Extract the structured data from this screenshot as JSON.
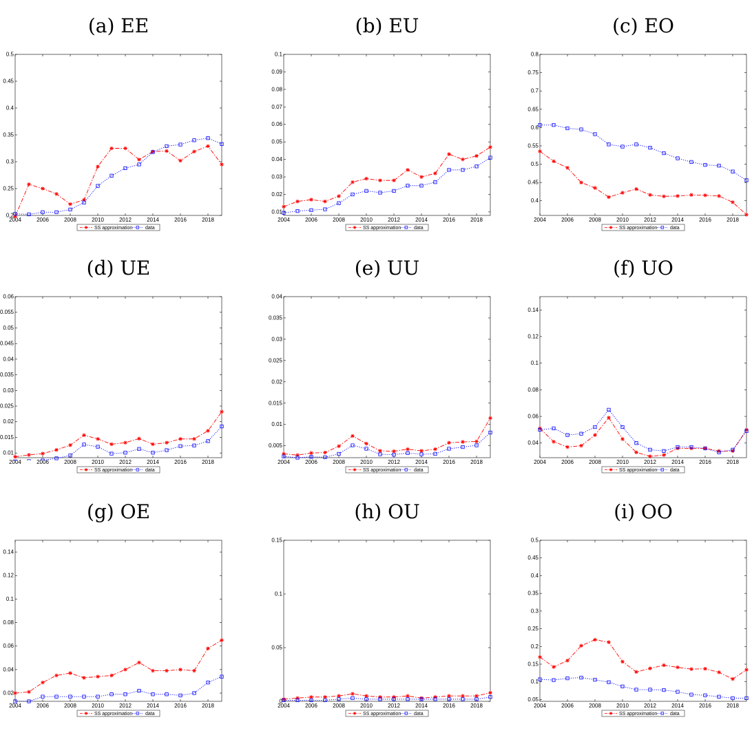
{
  "chart_data": [
    {
      "type": "line",
      "title": "(a) EE",
      "x": [
        2004,
        2005,
        2006,
        2007,
        2008,
        2009,
        2010,
        2011,
        2012,
        2013,
        2014,
        2015,
        2016,
        2017,
        2018,
        2019
      ],
      "xlim": [
        2004,
        2019
      ],
      "ylim": [
        0.2,
        0.5
      ],
      "xticks": [
        "2004",
        "2006",
        "2008",
        "2010",
        "2012",
        "2014",
        "2016",
        "2018"
      ],
      "yticks": [
        "0.2",
        "0.25",
        "0.3",
        "0.35",
        "0.4",
        "0.45",
        "0.5"
      ],
      "series": [
        {
          "name": "SS approximation",
          "color": "#ff0000",
          "marker": "star",
          "dash": "dashdot",
          "values": [
            0.198,
            0.258,
            0.25,
            0.24,
            0.221,
            0.229,
            0.291,
            0.325,
            0.325,
            0.304,
            0.319,
            0.32,
            0.302,
            0.319,
            0.329,
            0.295
          ]
        },
        {
          "name": "data",
          "color": "#0000ff",
          "marker": "square",
          "dash": "dotted",
          "values": [
            0.203,
            0.202,
            0.206,
            0.206,
            0.211,
            0.224,
            0.255,
            0.274,
            0.288,
            0.295,
            0.318,
            0.329,
            0.332,
            0.34,
            0.344,
            0.333
          ]
        }
      ],
      "legend": [
        "SS approximation",
        "data"
      ],
      "legend_position": "bottom",
      "grid": false
    },
    {
      "type": "line",
      "title": "(b) EU",
      "x": [
        2004,
        2005,
        2006,
        2007,
        2008,
        2009,
        2010,
        2011,
        2012,
        2013,
        2014,
        2015,
        2016,
        2017,
        2018,
        2019
      ],
      "xlim": [
        2004,
        2019
      ],
      "ylim": [
        0.008,
        0.1
      ],
      "xticks": [
        "2004",
        "2006",
        "2008",
        "2010",
        "2012",
        "2014",
        "2016",
        "2018"
      ],
      "yticks": [
        "0.01",
        "0.02",
        "0.03",
        "0.04",
        "0.05",
        "0.06",
        "0.07",
        "0.08",
        "0.09",
        "0.1"
      ],
      "series": [
        {
          "name": "SS approximation",
          "color": "#ff0000",
          "marker": "star",
          "dash": "dashdot",
          "values": [
            0.013,
            0.016,
            0.017,
            0.016,
            0.019,
            0.027,
            0.029,
            0.028,
            0.028,
            0.034,
            0.03,
            0.032,
            0.043,
            0.04,
            0.042,
            0.047
          ]
        },
        {
          "name": "data",
          "color": "#0000ff",
          "marker": "square",
          "dash": "dotted",
          "values": [
            0.0095,
            0.0105,
            0.011,
            0.0115,
            0.015,
            0.02,
            0.022,
            0.021,
            0.022,
            0.025,
            0.025,
            0.027,
            0.034,
            0.034,
            0.036,
            0.041
          ]
        }
      ],
      "legend": [
        "SS approximation",
        "data"
      ],
      "legend_position": "bottom",
      "grid": false
    },
    {
      "type": "line",
      "title": "(c) EO",
      "x": [
        2004,
        2005,
        2006,
        2007,
        2008,
        2009,
        2010,
        2011,
        2012,
        2013,
        2014,
        2015,
        2016,
        2017,
        2018,
        2019
      ],
      "xlim": [
        2004,
        2019
      ],
      "ylim": [
        0.36,
        0.8
      ],
      "xticks": [
        "2004",
        "2006",
        "2008",
        "2010",
        "2012",
        "2014",
        "2016",
        "2018"
      ],
      "yticks": [
        "0.4",
        "0.45",
        "0.5",
        "0.55",
        "0.6",
        "0.65",
        "0.7",
        "0.75",
        "0.8"
      ],
      "series": [
        {
          "name": "SS approximation",
          "color": "#ff0000",
          "marker": "star",
          "dash": "dashdot",
          "values": [
            0.535,
            0.508,
            0.49,
            0.45,
            0.435,
            0.41,
            0.422,
            0.432,
            0.416,
            0.412,
            0.413,
            0.416,
            0.415,
            0.413,
            0.396,
            0.362
          ]
        },
        {
          "name": "data",
          "color": "#0000ff",
          "marker": "square",
          "dash": "dotted",
          "values": [
            0.607,
            0.607,
            0.598,
            0.595,
            0.582,
            0.554,
            0.548,
            0.554,
            0.545,
            0.53,
            0.516,
            0.506,
            0.498,
            0.496,
            0.48,
            0.456
          ]
        }
      ],
      "legend": [
        "SS approximation",
        "data"
      ],
      "legend_position": "bottom",
      "grid": false
    },
    {
      "type": "line",
      "title": "(d) UE",
      "x": [
        2004,
        2005,
        2006,
        2007,
        2008,
        2009,
        2010,
        2011,
        2012,
        2013,
        2014,
        2015,
        2016,
        2017,
        2018,
        2019
      ],
      "xlim": [
        2004,
        2019
      ],
      "ylim": [
        0.0085,
        0.06
      ],
      "xticks": [
        "2004",
        "2006",
        "2008",
        "2010",
        "2012",
        "2014",
        "2016",
        "2018"
      ],
      "yticks": [
        "0.01",
        "0.015",
        "0.02",
        "0.025",
        "0.03",
        "0.035",
        "0.04",
        "0.045",
        "0.05",
        "0.055",
        "0.06"
      ],
      "series": [
        {
          "name": "SS approximation",
          "color": "#ff0000",
          "marker": "star",
          "dash": "dashdot",
          "values": [
            0.0088,
            0.0094,
            0.0098,
            0.011,
            0.0125,
            0.0157,
            0.0145,
            0.0128,
            0.0133,
            0.0146,
            0.0128,
            0.0133,
            0.0145,
            0.0145,
            0.0171,
            0.0232
          ]
        },
        {
          "name": "data",
          "color": "#0000ff",
          "marker": "square",
          "dash": "dotted",
          "values": [
            0.0073,
            0.0074,
            0.0076,
            0.0083,
            0.0092,
            0.0127,
            0.012,
            0.0098,
            0.0101,
            0.0113,
            0.0101,
            0.0109,
            0.0122,
            0.0124,
            0.0138,
            0.0185
          ]
        }
      ],
      "legend": [
        "SS approximation",
        "data"
      ],
      "legend_position": "bottom",
      "grid": false
    },
    {
      "type": "line",
      "title": "(e) UU",
      "x": [
        2004,
        2005,
        2006,
        2007,
        2008,
        2009,
        2010,
        2011,
        2012,
        2013,
        2014,
        2015,
        2016,
        2017,
        2018,
        2019
      ],
      "xlim": [
        2004,
        2019
      ],
      "ylim": [
        0.0022,
        0.04
      ],
      "xticks": [
        "2004",
        "2006",
        "2008",
        "2010",
        "2012",
        "2014",
        "2016",
        "2018"
      ],
      "yticks": [
        "0.005",
        "0.01",
        "0.015",
        "0.02",
        "0.025",
        "0.03",
        "0.035",
        "0.04"
      ],
      "series": [
        {
          "name": "SS approximation",
          "color": "#ff0000",
          "marker": "star",
          "dash": "dashdot",
          "values": [
            0.0031,
            0.0028,
            0.0033,
            0.0034,
            0.0049,
            0.0073,
            0.0055,
            0.0038,
            0.0037,
            0.0042,
            0.0038,
            0.0042,
            0.0057,
            0.0059,
            0.006,
            0.0115
          ]
        },
        {
          "name": "data",
          "color": "#0000ff",
          "marker": "square",
          "dash": "dotted",
          "values": [
            0.0025,
            0.0022,
            0.0024,
            0.0023,
            0.0031,
            0.0051,
            0.0043,
            0.003,
            0.0029,
            0.0033,
            0.003,
            0.0031,
            0.0043,
            0.0047,
            0.0051,
            0.0081
          ]
        }
      ],
      "legend": [
        "SS approximation",
        "data"
      ],
      "legend_position": "bottom",
      "grid": false
    },
    {
      "type": "line",
      "title": "(f) UO",
      "x": [
        2004,
        2005,
        2006,
        2007,
        2008,
        2009,
        2010,
        2011,
        2012,
        2013,
        2014,
        2015,
        2016,
        2017,
        2018,
        2019
      ],
      "xlim": [
        2004,
        2019
      ],
      "ylim": [
        0.029,
        0.15
      ],
      "xticks": [
        "2004",
        "2006",
        "2008",
        "2010",
        "2012",
        "2014",
        "2016",
        "2018"
      ],
      "yticks": [
        "0.04",
        "0.06",
        "0.08",
        "0.1",
        "0.12",
        "0.14"
      ],
      "series": [
        {
          "name": "SS approximation",
          "color": "#ff0000",
          "marker": "star",
          "dash": "dashdot",
          "values": [
            0.051,
            0.041,
            0.037,
            0.038,
            0.046,
            0.059,
            0.043,
            0.033,
            0.03,
            0.031,
            0.036,
            0.036,
            0.036,
            0.034,
            0.034,
            0.05
          ]
        },
        {
          "name": "data",
          "color": "#0000ff",
          "marker": "square",
          "dash": "dotted",
          "values": [
            0.05,
            0.051,
            0.046,
            0.047,
            0.052,
            0.065,
            0.052,
            0.04,
            0.035,
            0.034,
            0.037,
            0.037,
            0.036,
            0.033,
            0.035,
            0.049
          ]
        }
      ],
      "legend": [
        "SS approximation",
        "data"
      ],
      "legend_position": "bottom",
      "grid": false
    },
    {
      "type": "line",
      "title": "(g) OE",
      "x": [
        2004,
        2005,
        2006,
        2007,
        2008,
        2009,
        2010,
        2011,
        2012,
        2013,
        2014,
        2015,
        2016,
        2017,
        2018,
        2019
      ],
      "xlim": [
        2004,
        2019
      ],
      "ylim": [
        0.013,
        0.15
      ],
      "xticks": [
        "2004",
        "2006",
        "2008",
        "2010",
        "2012",
        "2014",
        "2016",
        "2018"
      ],
      "yticks": [
        "0.02",
        "0.04",
        "0.06",
        "0.08",
        "0.1",
        "0.12",
        "0.14"
      ],
      "series": [
        {
          "name": "SS approximation",
          "color": "#ff0000",
          "marker": "star",
          "dash": "dashdot",
          "values": [
            0.02,
            0.021,
            0.029,
            0.035,
            0.037,
            0.033,
            0.034,
            0.035,
            0.04,
            0.046,
            0.039,
            0.039,
            0.04,
            0.039,
            0.058,
            0.065
          ]
        },
        {
          "name": "data",
          "color": "#0000ff",
          "marker": "square",
          "dash": "dotted",
          "values": [
            0.013,
            0.013,
            0.017,
            0.017,
            0.017,
            0.017,
            0.017,
            0.019,
            0.019,
            0.022,
            0.019,
            0.019,
            0.018,
            0.02,
            0.029,
            0.034
          ]
        }
      ],
      "legend": [
        "SS approximation",
        "data"
      ],
      "legend_position": "bottom",
      "grid": false
    },
    {
      "type": "line",
      "title": "(h) OU",
      "x": [
        2004,
        2005,
        2006,
        2007,
        2008,
        2009,
        2010,
        2011,
        2012,
        2013,
        2014,
        2015,
        2016,
        2017,
        2018,
        2019
      ],
      "xlim": [
        2004,
        2019
      ],
      "ylim": [
        0,
        0.15
      ],
      "xticks": [
        "2004",
        "2006",
        "2008",
        "2010",
        "2012",
        "2014",
        "2016",
        "2018"
      ],
      "yticks": [
        "0",
        "0.05",
        "0.1",
        "0.15"
      ],
      "series": [
        {
          "name": "SS approximation",
          "color": "#ff0000",
          "marker": "star",
          "dash": "dashdot",
          "values": [
            0.002,
            0.003,
            0.004,
            0.004,
            0.005,
            0.007,
            0.005,
            0.004,
            0.004,
            0.005,
            0.003,
            0.004,
            0.005,
            0.005,
            0.005,
            0.008
          ]
        },
        {
          "name": "data",
          "color": "#0000ff",
          "marker": "square",
          "dash": "dotted",
          "values": [
            0.001,
            0.001,
            0.001,
            0.001,
            0.002,
            0.003,
            0.002,
            0.002,
            0.002,
            0.002,
            0.002,
            0.002,
            0.002,
            0.002,
            0.002,
            0.004
          ]
        }
      ],
      "legend": [
        "SS approximation",
        "data"
      ],
      "legend_position": "bottom",
      "grid": false
    },
    {
      "type": "line",
      "title": "(i) OO",
      "x": [
        2004,
        2005,
        2006,
        2007,
        2008,
        2009,
        2010,
        2011,
        2012,
        2013,
        2014,
        2015,
        2016,
        2017,
        2018,
        2019
      ],
      "xlim": [
        2004,
        2019
      ],
      "ylim": [
        0.045,
        0.5
      ],
      "xticks": [
        "2004",
        "2006",
        "2008",
        "2010",
        "2012",
        "2014",
        "2016",
        "2018"
      ],
      "yticks": [
        "0.05",
        "0.1",
        "0.15",
        "0.2",
        "0.25",
        "0.3",
        "0.35",
        "0.4",
        "0.45",
        "0.5"
      ],
      "series": [
        {
          "name": "SS approximation",
          "color": "#ff0000",
          "marker": "star",
          "dash": "dashdot",
          "values": [
            0.17,
            0.142,
            0.16,
            0.202,
            0.219,
            0.212,
            0.157,
            0.128,
            0.138,
            0.147,
            0.141,
            0.136,
            0.137,
            0.127,
            0.108,
            0.134
          ]
        },
        {
          "name": "data",
          "color": "#0000ff",
          "marker": "square",
          "dash": "dotted",
          "values": [
            0.107,
            0.105,
            0.11,
            0.112,
            0.106,
            0.099,
            0.087,
            0.078,
            0.078,
            0.077,
            0.072,
            0.064,
            0.062,
            0.058,
            0.054,
            0.054
          ]
        }
      ],
      "legend": [
        "SS approximation",
        "data"
      ],
      "legend_position": "bottom",
      "grid": false
    }
  ]
}
